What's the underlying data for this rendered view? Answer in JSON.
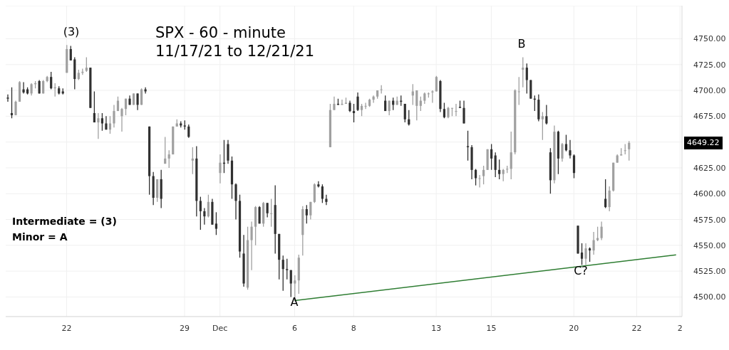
{
  "chart_data": {
    "type": "candlestick",
    "title": "SPX - 60 - minute",
    "subtitle": "11/17/21 to 12/21/21",
    "categories": [
      null,
      null,
      null,
      null,
      null,
      null,
      null,
      null,
      null,
      null,
      null,
      null,
      null,
      null,
      null,
      "22",
      null,
      null,
      null,
      null,
      null,
      null,
      null,
      null,
      null,
      null,
      null,
      null,
      null,
      null,
      null,
      null,
      null,
      null,
      null,
      null,
      null,
      null,
      null,
      null,
      null,
      null,
      null,
      null,
      null,
      "29",
      null,
      null,
      null,
      null,
      null,
      null,
      null,
      null,
      "Dec",
      null,
      null,
      null,
      null,
      null,
      null,
      null,
      null,
      null,
      null,
      null,
      null,
      null,
      null,
      null,
      null,
      null,
      null,
      "6",
      null,
      null,
      null,
      null,
      null,
      null,
      null,
      null,
      null,
      null,
      null,
      null,
      null,
      null,
      "8",
      null,
      null,
      null,
      null,
      null,
      null,
      null,
      null,
      null,
      null,
      null,
      null,
      null,
      null,
      null,
      null,
      null,
      null,
      null,
      null,
      "13",
      null,
      null,
      null,
      null,
      null,
      null,
      null,
      null,
      null,
      null,
      null,
      null,
      null,
      "15",
      null,
      null,
      null,
      null,
      null,
      null,
      null,
      null,
      null,
      null,
      null,
      null,
      null,
      null,
      null,
      null,
      null,
      null,
      null,
      null,
      "20",
      null,
      null,
      null,
      null,
      null,
      null,
      null,
      null,
      null,
      null,
      null,
      null,
      null,
      null,
      null,
      "22",
      null,
      null,
      null,
      null,
      null,
      null,
      null,
      null,
      null,
      null,
      "2"
    ],
    "ohlc": [
      [
        4693,
        4696,
        4689,
        4692
      ],
      [
        4678,
        4703,
        4673,
        4676
      ],
      [
        4676,
        4690,
        4676,
        4689
      ],
      [
        4689,
        4709,
        4689,
        4708
      ],
      [
        4701,
        4708,
        4697,
        4698
      ],
      [
        4701,
        4703,
        4696,
        4697
      ],
      [
        4697,
        4707,
        4695,
        4706
      ],
      [
        4706,
        4709,
        4702,
        4707
      ],
      [
        4709,
        4710,
        4697,
        4697
      ],
      [
        4697,
        4710,
        4697,
        4709
      ],
      [
        4709,
        4714,
        4708,
        4713
      ],
      [
        4713,
        4718,
        4701,
        4702
      ],
      [
        4702,
        4707,
        4694,
        4703
      ],
      [
        4702,
        4704,
        4696,
        4697
      ],
      [
        4699,
        4702,
        4696,
        4697
      ],
      [
        4717,
        4744,
        4717,
        4740
      ],
      [
        4740,
        4743,
        4729,
        4729
      ],
      [
        4730,
        4732,
        4701,
        4711
      ],
      [
        4711,
        4720,
        4710,
        4717
      ],
      [
        4717,
        4721,
        4715,
        4718
      ],
      [
        4719,
        4732,
        4718,
        4722
      ],
      [
        4722,
        4722,
        4683,
        4683
      ],
      [
        4678,
        4699,
        4669,
        4669
      ],
      [
        4669,
        4678,
        4653,
        4673
      ],
      [
        4673,
        4678,
        4661,
        4668
      ],
      [
        4668,
        4675,
        4662,
        4662
      ],
      [
        4662,
        4675,
        4658,
        4668
      ],
      [
        4668,
        4686,
        4664,
        4680
      ],
      [
        4680,
        4694,
        4680,
        4690
      ],
      [
        4675,
        4683,
        4660,
        4682
      ],
      [
        4682,
        4692,
        4676,
        4692
      ],
      [
        4692,
        4695,
        4686,
        4686
      ],
      [
        4686,
        4697,
        4686,
        4697
      ],
      [
        4697,
        4697,
        4681,
        4686
      ],
      [
        4686,
        4702,
        4686,
        4701
      ],
      [
        4701,
        4703,
        4697,
        4699
      ],
      [
        4665,
        4665,
        4599,
        4617
      ],
      [
        4617,
        4621,
        4589,
        4596
      ],
      [
        4596,
        4614,
        4592,
        4614
      ],
      [
        4614,
        4623,
        4586,
        4595
      ],
      [
        4629,
        4655,
        4629,
        4634
      ],
      [
        4634,
        4642,
        4625,
        4638
      ],
      [
        4638,
        4665,
        4638,
        4665
      ],
      [
        4665,
        4672,
        4665,
        4668
      ],
      [
        4668,
        4670,
        4664,
        4666
      ],
      [
        4666,
        4671,
        4662,
        4665
      ],
      [
        4665,
        4667,
        4654,
        4655
      ],
      [
        4632,
        4645,
        4619,
        4634
      ],
      [
        4634,
        4646,
        4578,
        4593
      ],
      [
        4593,
        4597,
        4565,
        4583
      ],
      [
        4583,
        4586,
        4570,
        4578
      ],
      [
        4578,
        4599,
        4577,
        4592
      ],
      [
        4592,
        4595,
        4570,
        4570
      ],
      [
        4571,
        4582,
        4560,
        4566
      ],
      [
        4620,
        4638,
        4610,
        4630
      ],
      [
        4630,
        4652,
        4620,
        4629
      ],
      [
        4648,
        4652,
        4629,
        4632
      ],
      [
        4632,
        4636,
        4595,
        4609
      ],
      [
        4609,
        4610,
        4575,
        4593
      ],
      [
        4593,
        4599,
        4538,
        4544
      ],
      [
        4542,
        4560,
        4510,
        4513
      ],
      [
        4509,
        4568,
        4507,
        4555
      ],
      [
        4555,
        4573,
        4526,
        4568
      ],
      [
        4568,
        4588,
        4550,
        4587
      ],
      [
        4587,
        4588,
        4571,
        4571
      ],
      [
        4571,
        4592,
        4568,
        4591
      ],
      [
        4591,
        4591,
        4577,
        4581
      ],
      [
        4581,
        4595,
        4568,
        4581
      ],
      [
        4589,
        4608,
        4542,
        4561
      ],
      [
        4561,
        4561,
        4517,
        4536
      ],
      [
        4536,
        4540,
        4506,
        4527
      ],
      [
        4527,
        4537,
        4517,
        4526
      ],
      [
        4526,
        4526,
        4500,
        4513
      ],
      [
        4513,
        4521,
        4496,
        4516
      ],
      [
        4516,
        4541,
        4503,
        4538
      ],
      [
        4560,
        4588,
        4540,
        4585
      ],
      [
        4585,
        4589,
        4571,
        4579
      ],
      [
        4579,
        4592,
        4575,
        4592
      ],
      [
        4592,
        4610,
        4591,
        4609
      ],
      [
        4609,
        4612,
        4606,
        4607
      ],
      [
        4607,
        4609,
        4591,
        4595
      ],
      [
        4595,
        4599,
        4589,
        4592
      ],
      [
        4645,
        4687,
        4645,
        4681
      ],
      [
        4681,
        4694,
        4681,
        4687
      ],
      [
        4687,
        4692,
        4686,
        4686
      ],
      [
        4686,
        4691,
        4686,
        4687
      ],
      [
        4687,
        4693,
        4687,
        4688
      ],
      [
        4688,
        4690,
        4679,
        4680
      ],
      [
        4680,
        4687,
        4669,
        4678
      ],
      [
        4694,
        4698,
        4680,
        4681
      ],
      [
        4681,
        4687,
        4675,
        4685
      ],
      [
        4685,
        4688,
        4682,
        4685
      ],
      [
        4685,
        4692,
        4684,
        4691
      ],
      [
        4691,
        4695,
        4688,
        4694
      ],
      [
        4694,
        4700,
        4692,
        4700
      ],
      [
        4701,
        4705,
        4697,
        4701
      ],
      [
        4690,
        4695,
        4680,
        4680
      ],
      [
        4680,
        4690,
        4676,
        4690
      ],
      [
        4690,
        4693,
        4681,
        4686
      ],
      [
        4686,
        4694,
        4686,
        4690
      ],
      [
        4690,
        4695,
        4685,
        4689
      ],
      [
        4687,
        4687,
        4669,
        4672
      ],
      [
        4672,
        4681,
        4666,
        4667
      ],
      [
        4695,
        4706,
        4686,
        4699
      ],
      [
        4685,
        4700,
        4671,
        4700
      ],
      [
        4685,
        4694,
        4680,
        4690
      ],
      [
        4690,
        4698,
        4687,
        4697
      ],
      [
        4697,
        4698,
        4693,
        4697
      ],
      [
        4698,
        4700,
        4688,
        4699
      ],
      [
        4699,
        4714,
        4699,
        4713
      ],
      [
        4709,
        4710,
        4679,
        4682
      ],
      [
        4682,
        4688,
        4673,
        4674
      ],
      [
        4674,
        4684,
        4673,
        4683
      ],
      [
        4683,
        4683,
        4675,
        4683
      ],
      [
        4680,
        4687,
        4675,
        4680
      ],
      [
        4684,
        4690,
        4683,
        4683
      ],
      [
        4683,
        4690,
        4668,
        4668
      ],
      [
        4646,
        4661,
        4632,
        4645
      ],
      [
        4645,
        4647,
        4614,
        4623
      ],
      [
        4623,
        4624,
        4608,
        4615
      ],
      [
        4615,
        4618,
        4606,
        4615
      ],
      [
        4617,
        4627,
        4609,
        4623
      ],
      [
        4623,
        4643,
        4623,
        4643
      ],
      [
        4643,
        4648,
        4623,
        4634
      ],
      [
        4637,
        4640,
        4616,
        4623
      ],
      [
        4623,
        4633,
        4614,
        4619
      ],
      [
        4619,
        4624,
        4612,
        4623
      ],
      [
        4624,
        4627,
        4620,
        4624
      ],
      [
        4624,
        4660,
        4614,
        4640
      ],
      [
        4640,
        4701,
        4638,
        4700
      ],
      [
        4699,
        4713,
        4686,
        4699
      ],
      [
        4720,
        4732,
        4703,
        4722
      ],
      [
        4722,
        4726,
        4697,
        4710
      ],
      [
        4710,
        4710,
        4692,
        4692
      ],
      [
        4692,
        4695,
        4680,
        4691
      ],
      [
        4691,
        4696,
        4670,
        4672
      ],
      [
        4672,
        4679,
        4652,
        4675
      ],
      [
        4675,
        4686,
        4667,
        4668
      ],
      [
        4640,
        4644,
        4600,
        4613
      ],
      [
        4613,
        4666,
        4610,
        4660
      ],
      [
        4660,
        4661,
        4619,
        4634
      ],
      [
        4634,
        4649,
        4631,
        4648
      ],
      [
        4648,
        4657,
        4641,
        4642
      ],
      [
        4642,
        4652,
        4634,
        4637
      ],
      [
        4637,
        4638,
        4615,
        4620
      ],
      [
        4569,
        4569,
        4542,
        4542
      ],
      [
        4543,
        4552,
        4531,
        4537
      ],
      [
        4537,
        4552,
        4531,
        4547
      ],
      [
        4547,
        4548,
        4534,
        4545
      ],
      [
        4545,
        4563,
        4541,
        4555
      ],
      [
        4555,
        4568,
        4554,
        4557
      ],
      [
        4557,
        4573,
        4555,
        4568
      ],
      [
        4595,
        4614,
        4586,
        4587
      ],
      [
        4587,
        4607,
        4583,
        4603
      ],
      [
        4603,
        4630,
        4602,
        4630
      ],
      [
        4630,
        4638,
        4630,
        4637
      ],
      [
        4637,
        4644,
        4637,
        4638
      ],
      [
        4642,
        4648,
        4638,
        4642
      ],
      [
        4643,
        4651,
        4632,
        4649.22
      ],
      null,
      null,
      null,
      null,
      null,
      null,
      null,
      null,
      null,
      null,
      null,
      null,
      null
    ],
    "colors": [
      "#303030",
      "#303030",
      "#a0a0a0",
      "#a0a0a0",
      "#303030",
      "#303030",
      "#a0a0a0",
      "#a0a0a0",
      "#303030",
      "#a0a0a0",
      "#a0a0a0",
      "#303030",
      "#a0a0a0",
      "#303030",
      "#303030",
      "#a0a0a0",
      "#303030",
      "#303030",
      "#a0a0a0",
      "#a0a0a0",
      "#a0a0a0",
      "#303030",
      "#303030",
      "#a0a0a0",
      "#303030",
      "#303030",
      "#a0a0a0",
      "#a0a0a0",
      "#a0a0a0",
      "#a0a0a0",
      "#a0a0a0",
      "#303030",
      "#a0a0a0",
      "#303030",
      "#a0a0a0",
      "#303030",
      "#303030",
      "#303030",
      "#a0a0a0",
      "#303030",
      "#a0a0a0",
      "#a0a0a0",
      "#a0a0a0",
      "#a0a0a0",
      "#303030",
      "#303030",
      "#303030",
      "#a0a0a0",
      "#303030",
      "#303030",
      "#303030",
      "#a0a0a0",
      "#303030",
      "#303030",
      "#a0a0a0",
      "#303030",
      "#303030",
      "#303030",
      "#303030",
      "#303030",
      "#303030",
      "#a0a0a0",
      "#a0a0a0",
      "#a0a0a0",
      "#303030",
      "#a0a0a0",
      "#303030",
      "#a0a0a0",
      "#303030",
      "#303030",
      "#303030",
      "#303030",
      "#303030",
      "#a0a0a0",
      "#a0a0a0",
      "#a0a0a0",
      "#303030",
      "#a0a0a0",
      "#a0a0a0",
      "#303030",
      "#303030",
      "#303030",
      "#a0a0a0",
      "#a0a0a0",
      "#303030",
      "#a0a0a0",
      "#a0a0a0",
      "#303030",
      "#303030",
      "#303030",
      "#a0a0a0",
      "#a0a0a0",
      "#a0a0a0",
      "#a0a0a0",
      "#a0a0a0",
      "#a0a0a0",
      "#303030",
      "#a0a0a0",
      "#303030",
      "#a0a0a0",
      "#303030",
      "#303030",
      "#303030",
      "#a0a0a0",
      "#a0a0a0",
      "#a0a0a0",
      "#a0a0a0",
      "#a0a0a0",
      "#a0a0a0",
      "#a0a0a0",
      "#303030",
      "#303030",
      "#a0a0a0",
      "#a0a0a0",
      "#a0a0a0",
      "#303030",
      "#303030",
      "#303030",
      "#303030",
      "#303030",
      "#a0a0a0",
      "#a0a0a0",
      "#a0a0a0",
      "#303030",
      "#303030",
      "#303030",
      "#a0a0a0",
      "#a0a0a0",
      "#a0a0a0",
      "#a0a0a0",
      "#a0a0a0",
      "#a0a0a0",
      "#303030",
      "#303030",
      "#303030",
      "#303030",
      "#a0a0a0",
      "#303030",
      "#303030",
      "#a0a0a0",
      "#303030",
      "#a0a0a0",
      "#303030",
      "#303030",
      "#303030",
      "#303030",
      "#303030",
      "#a0a0a0",
      "#303030",
      "#a0a0a0",
      "#a0a0a0",
      "#a0a0a0",
      "#303030",
      "#a0a0a0",
      "#a0a0a0",
      "#a0a0a0",
      "#a0a0a0",
      "#a0a0a0",
      "#a0a0a0",
      null,
      null,
      null,
      null,
      null,
      null,
      null,
      null,
      null,
      null,
      null,
      null,
      null
    ],
    "series": [
      {
        "type": "line",
        "color": "#2e7d32",
        "values": [
          null,
          null,
          null,
          null,
          null,
          null,
          null,
          null,
          null,
          null,
          null,
          null,
          null,
          null,
          null,
          null,
          null,
          null,
          null,
          null,
          null,
          null,
          null,
          null,
          null,
          null,
          null,
          null,
          null,
          null,
          null,
          null,
          null,
          null,
          null,
          null,
          null,
          null,
          null,
          null,
          null,
          null,
          null,
          null,
          null,
          null,
          null,
          null,
          null,
          null,
          null,
          null,
          null,
          null,
          null,
          null,
          null,
          null,
          null,
          null,
          null,
          null,
          null,
          null,
          null,
          null,
          null,
          null,
          null,
          null,
          null,
          null,
          null,
          4496.5,
          null,
          null,
          null,
          null,
          null,
          null,
          null,
          null,
          null,
          null,
          null,
          null,
          null,
          null,
          null,
          null,
          null,
          null,
          null,
          null,
          null,
          null,
          null,
          null,
          null,
          null,
          null,
          null,
          null,
          null,
          null,
          null,
          null,
          null,
          null,
          null,
          null,
          null,
          null,
          null,
          null,
          null,
          null,
          null,
          null,
          null,
          null,
          null,
          null,
          null,
          null,
          null,
          null,
          null,
          null,
          null,
          null,
          null,
          null,
          null,
          null,
          null,
          null,
          null,
          null,
          null,
          null,
          null,
          null,
          null,
          null,
          null,
          null,
          null,
          null,
          null,
          null,
          null,
          null,
          null,
          null,
          null,
          null,
          null,
          null,
          null,
          null,
          null,
          null,
          null,
          null,
          null,
          null,
          null,
          null,
          null,
          4540.7,
          null
        ]
      }
    ],
    "ylim": [
      4481,
      4782
    ],
    "yticks": [
      {
        "value": 4500,
        "label": "4500.00"
      },
      {
        "value": 4525,
        "label": "4525.00"
      },
      {
        "value": 4550,
        "label": "4550.00"
      },
      {
        "value": 4575,
        "label": "4575.00"
      },
      {
        "value": 4600,
        "label": "4600.00"
      },
      {
        "value": 4625,
        "label": "4625.00"
      },
      {
        "value": 4650,
        "label": null
      },
      {
        "value": 4675,
        "label": "4675.00"
      },
      {
        "value": 4700,
        "label": "4700.00"
      },
      {
        "value": 4725,
        "label": "4725.00"
      },
      {
        "value": 4750,
        "label": "4750.00"
      }
    ],
    "grid": true,
    "annotations": [
      "(3)",
      "B",
      "A",
      "C?",
      "Intermediate = (3)",
      "Minor = A",
      "4649.22"
    ]
  }
}
